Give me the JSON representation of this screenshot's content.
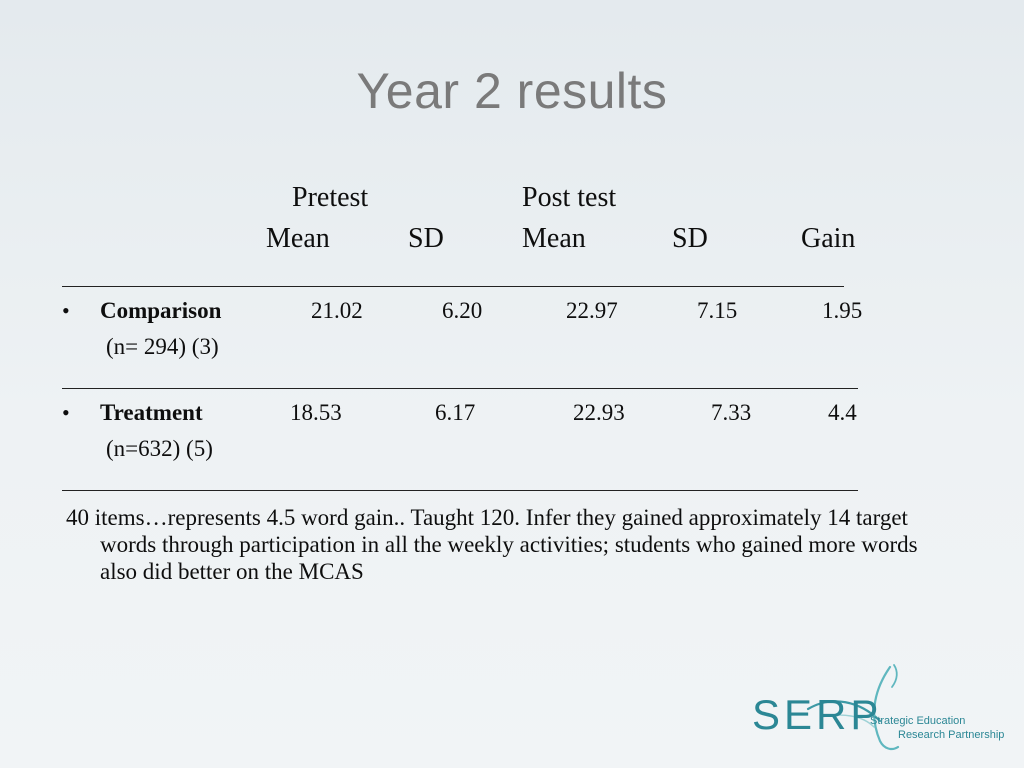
{
  "slide": {
    "title": "Year 2 results"
  },
  "table": {
    "group_headers": {
      "pretest": "Pretest",
      "posttest": "Post test"
    },
    "column_headers": {
      "pre_mean": "Mean",
      "pre_sd": "SD",
      "post_mean": "Mean",
      "post_sd": "SD",
      "gain": "Gain"
    },
    "rule_text": "______________________________________________",
    "bullet_glyph": "•",
    "rows": [
      {
        "label": "Comparison",
        "sublabel": "(n= 294) (3)",
        "pre_mean": "21.02",
        "pre_sd": "6.20",
        "post_mean": "22.97",
        "post_sd": "7.15",
        "gain": "1.95"
      },
      {
        "label": "Treatment",
        "sublabel": "(n=632) (5)",
        "pre_mean": "18.53",
        "pre_sd": "6.17",
        "post_mean": "22.93",
        "post_sd": "7.33",
        "gain": "4.4"
      }
    ]
  },
  "note": "40 items…represents 4.5 word gain.. Taught 120. Infer they gained approximately 14 target words through participation in all the weekly activities;  students who gained more words also did better on the MCAS",
  "logo": {
    "wordmark": "SERP",
    "line1": "Strategic Education",
    "line2": "Research Partnership",
    "color": "#2b8795"
  }
}
